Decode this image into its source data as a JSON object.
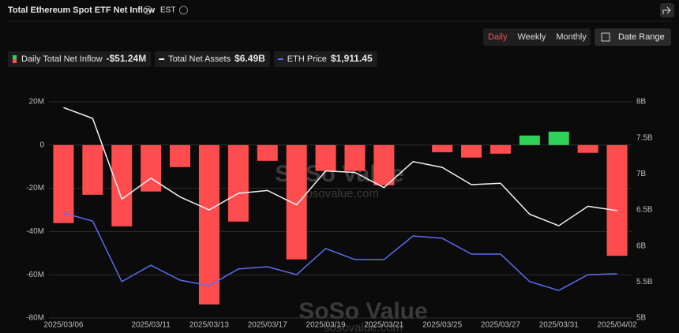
{
  "header": {
    "title": "Total Ethereum Spot ETF Net Inflow",
    "timezone": "EST"
  },
  "controls": {
    "periods": [
      "Daily",
      "Weekly",
      "Monthly"
    ],
    "active_index": 0,
    "date_range": "Date Range"
  },
  "watermark": {
    "brand": "SoSo Value",
    "site": "sosovalue.com"
  },
  "chart_data": {
    "type": "bar",
    "categories": [
      "2025/03/06",
      null,
      null,
      "2025/03/11",
      null,
      "2025/03/13",
      null,
      "2025/03/17",
      null,
      "2025/03/19",
      null,
      "2025/03/21",
      null,
      "2025/03/25",
      null,
      "2025/03/27",
      null,
      "2025/03/31",
      null,
      "2025/04/02"
    ],
    "series": [
      {
        "name": "Daily Total Net Inflow",
        "legend_value": "-$51.24M",
        "type": "bar",
        "color": "#ff4d4f",
        "positive_color": "#30d158",
        "values": [
          -36.1,
          -23,
          -37.6,
          -21.5,
          -10.2,
          -73.7,
          -35.4,
          -7.3,
          -52.9,
          -12,
          -12,
          -18.6,
          0,
          -3.3,
          -5.8,
          -4,
          4.4,
          6.2,
          -3.6,
          -51.24
        ]
      },
      {
        "name": "Total Net Assets",
        "legend_value": "$6.49B",
        "type": "line",
        "axis": "y2",
        "color": "#f2f2f2",
        "values": [
          7.92,
          7.77,
          6.65,
          6.94,
          6.68,
          6.5,
          6.73,
          6.77,
          6.57,
          7.04,
          7.02,
          6.81,
          7.17,
          7.09,
          6.85,
          6.87,
          6.44,
          6.28,
          6.55,
          6.49
        ]
      },
      {
        "name": "ETH Price",
        "legend_value": "$1,911.45",
        "type": "line",
        "axis": "y3",
        "color": "#5b6cf0",
        "values": [
          2200,
          2162,
          1874,
          1952,
          1881,
          1855,
          1934,
          1945,
          1907,
          2031,
          1979,
          1979,
          2091,
          2080,
          2005,
          2005,
          1874,
          1832,
          1907,
          1911.45
        ]
      }
    ],
    "ylim": [
      -80,
      20
    ],
    "yticks": [
      {
        "value": 20,
        "label": "20M"
      },
      0,
      {
        "value": -20,
        "label": "-20M"
      },
      {
        "value": -40,
        "label": "-40M"
      },
      {
        "value": -60,
        "label": "-60M"
      },
      {
        "value": -80,
        "label": "-80M"
      }
    ],
    "y2lim": [
      5,
      8
    ],
    "y2ticks": [
      {
        "value": 8,
        "label": "8B"
      },
      {
        "value": 7.5,
        "label": "7.5B"
      },
      {
        "value": 7,
        "label": "7B"
      },
      {
        "value": 6.5,
        "label": "6.5B"
      },
      {
        "value": 6,
        "label": "6B"
      },
      {
        "value": 5.5,
        "label": "5.5B"
      },
      {
        "value": 5,
        "label": "5B"
      }
    ],
    "y3lim": [
      1701,
      2729
    ],
    "grid": true
  }
}
